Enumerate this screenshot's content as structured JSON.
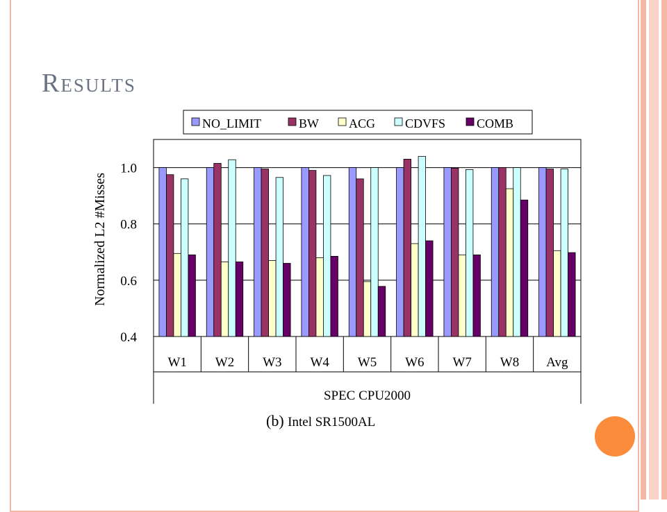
{
  "slide": {
    "title": "Results",
    "caption_label": "(b)",
    "caption_text": "Intel SR1500AL"
  },
  "colors": {
    "border": "#f4b9a6",
    "stripes": [
      "#f4b9a6",
      "#fad3c6",
      "#f4b9a6"
    ],
    "circle": "#fb8c3c",
    "title": "#6b7383"
  },
  "chart_data": {
    "type": "bar",
    "title": "",
    "xlabel": "SPEC CPU2000",
    "ylabel": "Normalized L2 #Misses",
    "ylim": [
      0.4,
      1.1
    ],
    "yticks": [
      0.4,
      0.6,
      0.8,
      1.0
    ],
    "ytick_labels": [
      "0.4",
      "0.6",
      "0.8",
      "1.0"
    ],
    "grid": true,
    "legend_position": "top",
    "categories": [
      "W1",
      "W2",
      "W3",
      "W4",
      "W5",
      "W6",
      "W7",
      "W8",
      "Avg"
    ],
    "series": [
      {
        "name": "NO_LIMIT",
        "color": "#9999ff",
        "values": [
          1.0,
          1.0,
          1.0,
          1.0,
          1.0,
          1.0,
          1.0,
          1.0,
          1.0
        ]
      },
      {
        "name": "BW",
        "color": "#993366",
        "values": [
          0.975,
          1.015,
          0.995,
          0.99,
          0.96,
          1.03,
          0.998,
          1.0,
          0.995
        ]
      },
      {
        "name": "ACG",
        "color": "#ffffcc",
        "values": [
          0.695,
          0.665,
          0.67,
          0.68,
          0.595,
          0.73,
          0.69,
          0.925,
          0.705
        ]
      },
      {
        "name": "CDVFS",
        "color": "#ccffff",
        "values": [
          0.96,
          1.028,
          0.965,
          0.972,
          1.0,
          1.04,
          0.993,
          1.0,
          0.995
        ]
      },
      {
        "name": "COMB",
        "color": "#660066",
        "values": [
          0.69,
          0.665,
          0.66,
          0.685,
          0.578,
          0.74,
          0.69,
          0.885,
          0.698
        ]
      }
    ]
  }
}
